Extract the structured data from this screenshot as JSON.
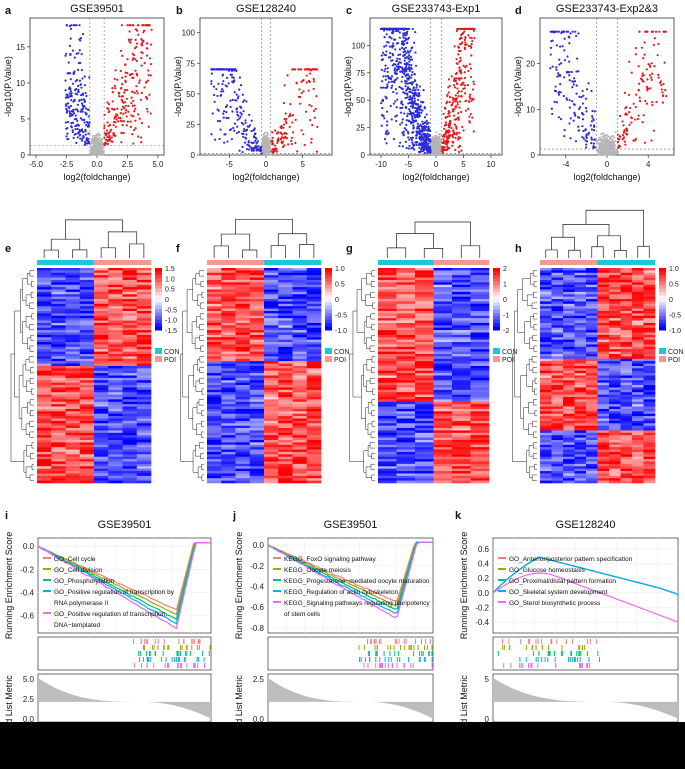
{
  "panel_letters": [
    "a",
    "b",
    "c",
    "d",
    "e",
    "f",
    "g",
    "h",
    "i",
    "j",
    "k"
  ],
  "colors": {
    "up": "#e41a1c",
    "down": "#2b2bd9",
    "ns": "#b5b5b5",
    "con": "#1fc6d6",
    "poi": "#f29a8f",
    "hm_high": "#ff0000",
    "hm_low": "#1a1aff",
    "hm_mid": "#ffffff"
  },
  "chart_data": [
    {
      "type": "scatter",
      "panel": "a",
      "title": "GSE39501",
      "xlabel": "log2(foldchange)",
      "ylabel": "-log10(P.Value)",
      "xlim": [
        -5.5,
        5.5
      ],
      "ylim": [
        0,
        19
      ],
      "xticks": [
        "-5.0",
        "-2.5",
        "0.0",
        "2.5",
        "5.0"
      ],
      "xtick_vals": [
        -5,
        -2.5,
        0,
        2.5,
        5
      ],
      "yticks": [
        "0",
        "5",
        "10",
        "15"
      ],
      "ytick_vals": [
        0,
        5,
        10,
        15
      ],
      "vlines": [
        -0.585,
        0.585
      ],
      "hline": 1.3,
      "point_ranges": {
        "down_x": [
          -2.6,
          -0.6
        ],
        "up_x": [
          0.6,
          4.5
        ],
        "max_y": 18
      }
    },
    {
      "type": "scatter",
      "panel": "b",
      "title": "GSE128240",
      "xlabel": "log2(foldchange)",
      "ylabel": "-log10(P.Value)",
      "xlim": [
        -9,
        9
      ],
      "ylim": [
        0,
        112
      ],
      "xticks": [
        "-5",
        "0",
        "5"
      ],
      "xtick_vals": [
        -5,
        0,
        5
      ],
      "yticks": [
        "0",
        "25",
        "50",
        "75",
        "100"
      ],
      "ytick_vals": [
        0,
        25,
        50,
        75,
        100
      ],
      "vlines": [
        -0.585,
        0.585
      ],
      "hline": 1.3,
      "point_ranges": {
        "down_x": [
          -7.5,
          -0.6
        ],
        "up_x": [
          0.6,
          7
        ],
        "max_y": 70
      }
    },
    {
      "type": "scatter",
      "panel": "c",
      "title": "GSE233743-Exp1",
      "xlabel": "log2(foldchange)",
      "ylabel": "-log10(P.Value)",
      "xlim": [
        -12,
        12
      ],
      "ylim": [
        0,
        125
      ],
      "xticks": [
        "-10",
        "-5",
        "0",
        "5",
        "10"
      ],
      "xtick_vals": [
        -10,
        -5,
        0,
        5,
        10
      ],
      "yticks": [
        "0",
        "25",
        "50",
        "75",
        "100"
      ],
      "ytick_vals": [
        0,
        25,
        50,
        75,
        100
      ],
      "vlines": [
        -1,
        1
      ],
      "hline": 1.3,
      "point_ranges": {
        "down_x": [
          -10,
          -1
        ],
        "up_x": [
          1,
          7
        ],
        "max_y": 115
      }
    },
    {
      "type": "scatter",
      "panel": "d",
      "title": "GSE233743-Exp2&3",
      "xlabel": "log2(foldchange)",
      "ylabel": "-log10(P.Value)",
      "xlim": [
        -6.5,
        6.5
      ],
      "ylim": [
        0,
        30
      ],
      "xticks": [
        "-4",
        "0",
        "4"
      ],
      "xtick_vals": [
        -4,
        0,
        4
      ],
      "yticks": [
        "0",
        "10",
        "20"
      ],
      "ytick_vals": [
        0,
        10,
        20
      ],
      "vlines": [
        -1,
        1
      ],
      "hline": 1.3,
      "point_ranges": {
        "down_x": [
          -5.5,
          -1
        ],
        "up_x": [
          1,
          5.8
        ],
        "max_y": 27
      }
    },
    {
      "type": "heatmap",
      "panel": "e",
      "scale_ticks": [
        "1.5",
        "1.0",
        "0.5",
        "0",
        "-0.5",
        "-1.0",
        "-1.5"
      ],
      "legend": [
        "CON",
        "POI"
      ],
      "groups": [
        "CON",
        "POI"
      ]
    },
    {
      "type": "heatmap",
      "panel": "f",
      "scale_ticks": [
        "1.0",
        "0.5",
        "0",
        "-0.5",
        "-1.0"
      ],
      "legend": [
        "CON",
        "POI"
      ],
      "groups": [
        "POI",
        "CON"
      ]
    },
    {
      "type": "heatmap",
      "panel": "g",
      "scale_ticks": [
        "2",
        "1",
        "0",
        "-1",
        "-2"
      ],
      "legend": [
        "CON",
        "POI"
      ],
      "groups": [
        "CON",
        "POI"
      ]
    },
    {
      "type": "heatmap",
      "panel": "h",
      "scale_ticks": [
        "1.0",
        "0.5",
        "0",
        "-0.5",
        "-1.0"
      ],
      "legend": [
        "CON",
        "POI"
      ],
      "groups": [
        "POI",
        "CON"
      ]
    },
    {
      "type": "line",
      "panel": "i",
      "title": "GSE39501",
      "ylabel": "Running Enrichment Score",
      "ylabel2": "ed List Metric",
      "yticks": [
        "0.0",
        "-0.2",
        "-0.4",
        "-0.6"
      ],
      "ytick_vals": [
        0,
        -0.2,
        -0.4,
        -0.6
      ],
      "ylim": [
        -0.75,
        0.07
      ],
      "rank_yticks": [
        "5.0",
        "2.5",
        "0.0"
      ],
      "series": [
        {
          "name": "GO_Cell cycle",
          "color": "#f08080"
        },
        {
          "name": "GO_Cell division",
          "color": "#a3a500"
        },
        {
          "name": "GO_Phosphorylation",
          "color": "#00bf7d"
        },
        {
          "name": "GO_Positive regulation of transcription by RNA polymerase II",
          "color": "#00b0f6"
        },
        {
          "name": "GO_Positive regulation of transcription, DNA−templated",
          "color": "#e76bf3"
        }
      ],
      "legend_lines": [
        "GO_Cell cycle",
        "GO_Cell division",
        "GO_Phosphorylation",
        "GO_Positive regulation of transcription by",
        "RNA polymerase II",
        "GO_Positive regulation of transcription,",
        "DNA−templated"
      ]
    },
    {
      "type": "line",
      "panel": "j",
      "title": "GSE39501",
      "ylabel": "Running Enrichment Score",
      "ylabel2": "ed List Metric",
      "yticks": [
        "0.0",
        "-0.2",
        "-0.4",
        "-0.6",
        "-0.8"
      ],
      "ytick_vals": [
        0,
        -0.2,
        -0.4,
        -0.6,
        -0.8
      ],
      "ylim": [
        -0.85,
        0.07
      ],
      "rank_yticks": [
        "2.5",
        "0.0"
      ],
      "series": [
        {
          "name": "KEGG_FoxO signaling pathway",
          "color": "#f08080"
        },
        {
          "name": "KEGG_Oocyte meiosis",
          "color": "#a3a500"
        },
        {
          "name": "KEGG_Progesterone−mediated oocyte maturation",
          "color": "#00bf7d"
        },
        {
          "name": "KEGG_Regulation of actin cytoskeleton",
          "color": "#00b0f6"
        },
        {
          "name": "KEGG_Signaling pathways regulating pluripotency of stem cells",
          "color": "#e76bf3"
        }
      ],
      "legend_lines": [
        "KEGG_FoxO signaling pathway",
        "KEGG_Oocyte meiosis",
        "KEGG_Progesterone−mediated oocyte maturation",
        "KEGG_Regulation of actin cytoskeleton",
        "KEGG_Signaling pathways regulating pluripotency",
        "of stem cells"
      ]
    },
    {
      "type": "line",
      "panel": "k",
      "title": "GSE128240",
      "ylabel": "Running Enrichment Score",
      "ylabel2": "ed List Metric",
      "yticks": [
        "0.6",
        "0.4",
        "0.2",
        "0.0",
        "-0.2",
        "-0.4"
      ],
      "ytick_vals": [
        0.6,
        0.4,
        0.2,
        0,
        -0.2,
        -0.4
      ],
      "ylim": [
        -0.55,
        0.75
      ],
      "rank_yticks": [
        "5",
        "0"
      ],
      "series": [
        {
          "name": "GO_Anterior/posterior pattern specification",
          "color": "#f08080"
        },
        {
          "name": "GO_Glucose homeostasis",
          "color": "#a3a500"
        },
        {
          "name": "GO_Proximal/distal pattern formation",
          "color": "#00bf7d"
        },
        {
          "name": "GO_Skeletal system development",
          "color": "#00b0f6"
        },
        {
          "name": "GO_Sterol biosynthetic process",
          "color": "#e76bf3"
        }
      ],
      "legend_lines": [
        "GO_Anterior/posterior pattern specification",
        "GO_Glucose homeostasis",
        "GO_Proximal/distal pattern formation",
        "GO_Skeletal system development",
        "GO_Sterol biosynthetic process"
      ]
    }
  ]
}
